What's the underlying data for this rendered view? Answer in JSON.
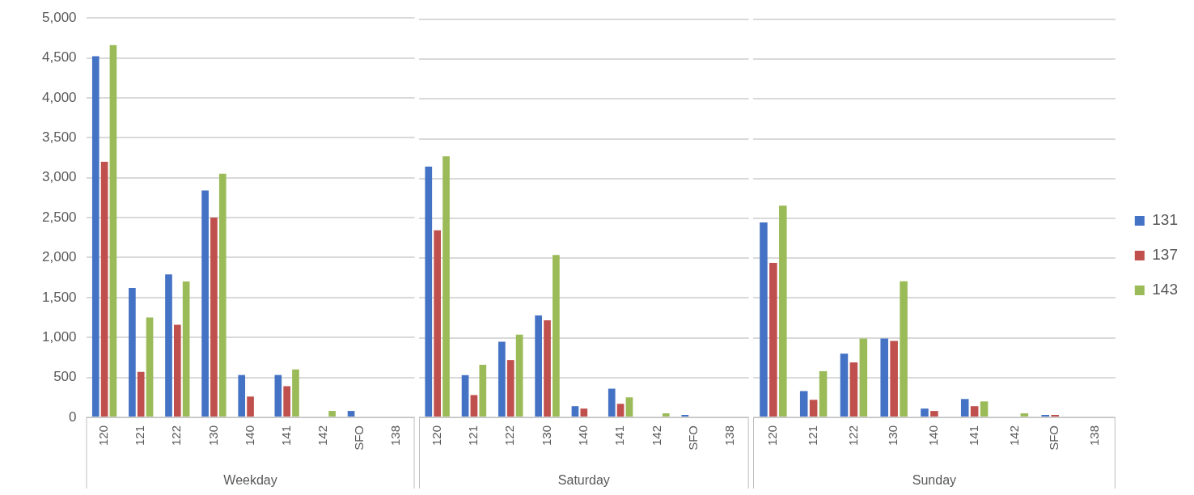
{
  "chart_data": [
    {
      "type": "bar",
      "xlabel": "Weekday",
      "categories": [
        "120",
        "121",
        "122",
        "130",
        "140",
        "141",
        "142",
        "SFO",
        "138"
      ],
      "ylim": [
        0,
        5000
      ],
      "yticks": [
        0,
        {
          "value": 500,
          "label": "500"
        },
        {
          "value": 1000,
          "label": "1,000"
        },
        {
          "value": 1500,
          "label": "1,500"
        },
        {
          "value": 2000,
          "label": "2,000"
        },
        {
          "value": 2500,
          "label": "2,500"
        },
        {
          "value": 3000,
          "label": "3,000"
        },
        {
          "value": 3500,
          "label": "3,500"
        },
        {
          "value": 4000,
          "label": "4,000"
        },
        {
          "value": 4500,
          "label": "4,500"
        },
        {
          "value": 5000,
          "label": "5,000"
        }
      ],
      "grid": "y",
      "series": [
        {
          "color": "#4472c4",
          "values": [
            4520,
            1620,
            1790,
            2840,
            530,
            530,
            0,
            80,
            0
          ]
        },
        {
          "color": "#c0504d",
          "values": [
            3200,
            570,
            1160,
            2500,
            260,
            390,
            0,
            0,
            0
          ]
        },
        {
          "color": "#9bbb59",
          "values": [
            4660,
            1250,
            1700,
            3050,
            0,
            600,
            80,
            0,
            0
          ]
        }
      ]
    },
    {
      "type": "bar",
      "xlabel": "Saturday",
      "categories": [
        "120",
        "121",
        "122",
        "130",
        "140",
        "141",
        "142",
        "SFO",
        "138"
      ],
      "ylim": [
        0,
        5000
      ],
      "yticks": [
        0,
        500,
        1000,
        1500,
        2000,
        2500,
        3000,
        3500,
        4000,
        4500,
        5000
      ],
      "grid": "y",
      "tick_labels": "x",
      "series": [
        {
          "color": "#4472c4",
          "values": [
            3150,
            530,
            950,
            1280,
            140,
            360,
            0,
            30,
            0
          ]
        },
        {
          "color": "#c0504d",
          "values": [
            2350,
            280,
            720,
            1220,
            110,
            170,
            0,
            0,
            0
          ]
        },
        {
          "color": "#9bbb59",
          "values": [
            3280,
            660,
            1040,
            2040,
            0,
            250,
            50,
            0,
            0
          ]
        }
      ]
    },
    {
      "type": "bar",
      "xlabel": "Sunday",
      "categories": [
        "120",
        "121",
        "122",
        "130",
        "140",
        "141",
        "142",
        "SFO",
        "138"
      ],
      "ylim": [
        0,
        5000
      ],
      "yticks": [
        0,
        500,
        1000,
        1500,
        2000,
        2500,
        3000,
        3500,
        4000,
        4500,
        5000
      ],
      "grid": "y",
      "tick_labels": "x",
      "legend": "right",
      "series": [
        {
          "name": "131",
          "color": "#4472c4",
          "values": [
            2450,
            330,
            800,
            990,
            110,
            230,
            0,
            30,
            0
          ]
        },
        {
          "name": "137",
          "color": "#c0504d",
          "values": [
            1940,
            220,
            690,
            960,
            80,
            140,
            0,
            30,
            0
          ]
        },
        {
          "name": "143",
          "color": "#9bbb59",
          "values": [
            2660,
            580,
            990,
            1710,
            0,
            200,
            50,
            0,
            0
          ]
        }
      ]
    }
  ]
}
